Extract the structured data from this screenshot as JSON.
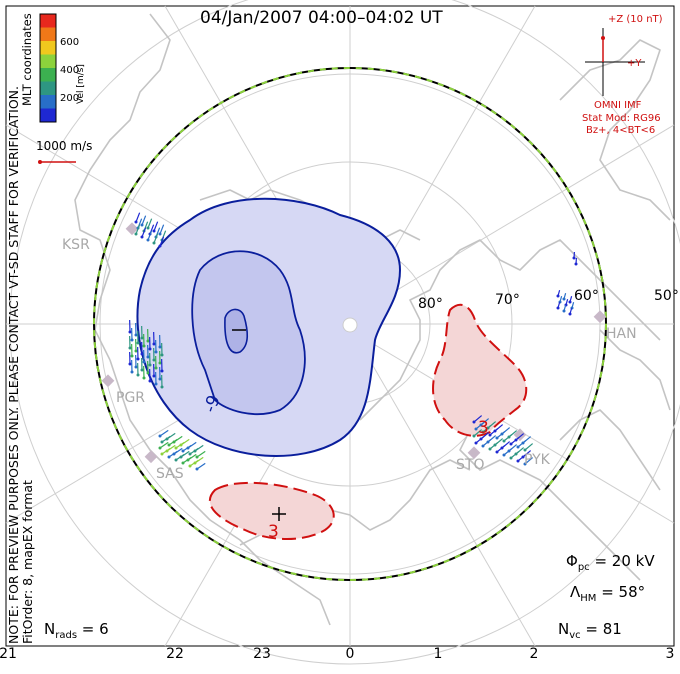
{
  "title": "04/Jan/2007 04:00–04:02 UT",
  "notes": {
    "preview": "NOTE: FOR PREVIEW PURPOSES ONLY. PLEASE CONTACT VT-SD STAFF FOR VERIFICATION.",
    "fit": "FitOrder: 8, mapEX format",
    "coords": "MLT coordinates"
  },
  "colorbar": {
    "label": "Vel [m/s]",
    "ticks": [
      "600",
      "400",
      "200"
    ],
    "colors": [
      "#e8281e",
      "#f07818",
      "#f0c81e",
      "#8cd23c",
      "#3cb050",
      "#2e9682",
      "#286ec8",
      "#1e28d2"
    ]
  },
  "velocity_ref": "1000 m/s",
  "imf": {
    "z_label": "+Z (10 nT)",
    "y_label": "+Y",
    "source": "OMNI IMF",
    "model": "Stat Mod: RG96",
    "condition": "Bz+, 4<BT<6"
  },
  "latitude_labels": [
    "80°",
    "70°",
    "60°",
    "50°"
  ],
  "radars": [
    "KSR",
    "PGR",
    "SAS",
    "STO",
    "PYK",
    "HAN"
  ],
  "contours": {
    "negative": "-9",
    "positive": "3"
  },
  "stats": {
    "phi_pc": "20 kV",
    "lambda_hm": "58°",
    "n_vc": "81",
    "n_rads": "6"
  },
  "mlt_axis": [
    "21",
    "22",
    "23",
    "0",
    "1",
    "2",
    "3"
  ],
  "colors": {
    "negative_fill": "#d6d8f4",
    "negative_line": "#0a1e9c",
    "positive_fill": "#f4d6d6",
    "positive_line": "#d01010",
    "land": "#c8c8c8",
    "grid": "#c8c8c8",
    "boundary_green": "#8cd23c"
  }
}
